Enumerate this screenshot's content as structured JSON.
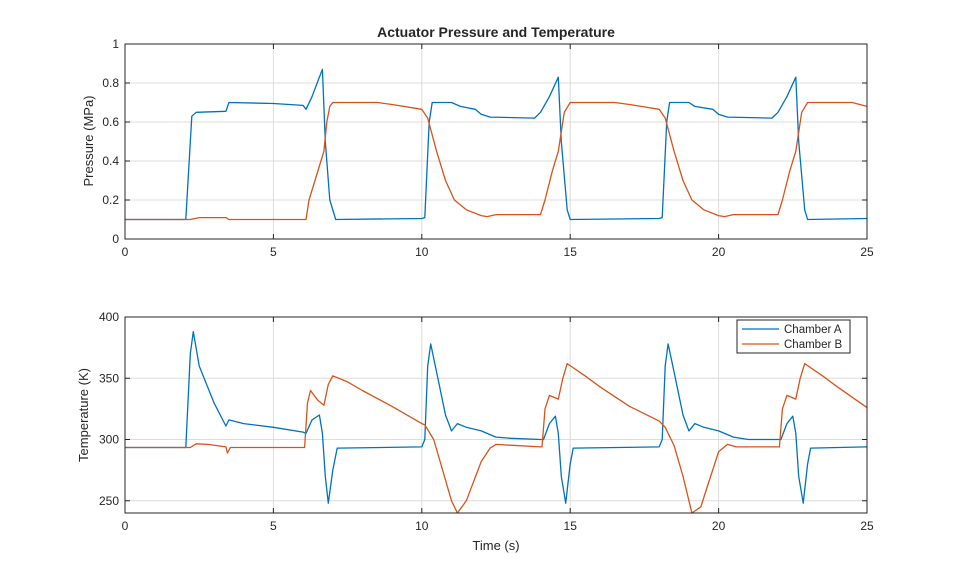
{
  "chart_data": [
    {
      "type": "line",
      "title": "Actuator Pressure and Temperature",
      "xlabel": "",
      "ylabel": "Pressure (MPa)",
      "xlim": [
        0,
        25
      ],
      "ylim": [
        0,
        1
      ],
      "xticks": [
        0,
        5,
        10,
        15,
        20,
        25
      ],
      "yticks": [
        0,
        0.2,
        0.4,
        0.6,
        0.8,
        1
      ],
      "ytick_labels": [
        "0",
        "0.2",
        "0.4",
        "0.6",
        "0.8",
        "1"
      ],
      "grid": true,
      "series": [
        {
          "name": "Chamber A",
          "color": "#0072BD",
          "x": [
            0,
            2.05,
            2.25,
            2.4,
            3.4,
            3.5,
            5,
            6,
            6.1,
            6.3,
            6.5,
            6.65,
            6.75,
            6.9,
            7.1,
            10,
            10.1,
            10.25,
            10.35,
            11,
            11.3,
            11.8,
            12,
            12.3,
            13.8,
            14,
            14.3,
            14.6,
            14.7,
            14.9,
            15,
            18,
            18.1,
            18.25,
            18.35,
            19,
            19.2,
            19.8,
            20,
            20.3,
            21.8,
            22,
            22.3,
            22.6,
            22.7,
            22.9,
            23,
            25
          ],
          "y": [
            0.1,
            0.1,
            0.63,
            0.65,
            0.655,
            0.7,
            0.695,
            0.685,
            0.665,
            0.73,
            0.81,
            0.87,
            0.5,
            0.2,
            0.1,
            0.105,
            0.11,
            0.6,
            0.7,
            0.7,
            0.68,
            0.665,
            0.64,
            0.625,
            0.62,
            0.65,
            0.73,
            0.83,
            0.5,
            0.15,
            0.1,
            0.105,
            0.11,
            0.6,
            0.7,
            0.7,
            0.68,
            0.665,
            0.64,
            0.625,
            0.62,
            0.65,
            0.73,
            0.83,
            0.5,
            0.15,
            0.1,
            0.105
          ]
        },
        {
          "name": "Chamber B",
          "color": "#D95319",
          "x": [
            0,
            2.2,
            2.5,
            3.4,
            3.5,
            6.1,
            6.2,
            6.4,
            6.6,
            6.7,
            6.8,
            6.9,
            7,
            8.5,
            9,
            10,
            10.2,
            10.5,
            10.8,
            11.1,
            11.5,
            12,
            12.2,
            12.5,
            14,
            14.15,
            14.4,
            14.6,
            14.8,
            15,
            16.5,
            17,
            18,
            18.2,
            18.5,
            18.8,
            19.1,
            19.5,
            20,
            20.2,
            20.5,
            22,
            22.15,
            22.4,
            22.6,
            22.8,
            23,
            24.5,
            25
          ],
          "y": [
            0.1,
            0.1,
            0.11,
            0.11,
            0.1,
            0.1,
            0.2,
            0.3,
            0.4,
            0.45,
            0.6,
            0.68,
            0.7,
            0.7,
            0.69,
            0.665,
            0.62,
            0.45,
            0.3,
            0.2,
            0.15,
            0.12,
            0.115,
            0.125,
            0.125,
            0.2,
            0.35,
            0.45,
            0.65,
            0.7,
            0.7,
            0.69,
            0.665,
            0.62,
            0.45,
            0.3,
            0.2,
            0.15,
            0.12,
            0.115,
            0.125,
            0.125,
            0.2,
            0.35,
            0.45,
            0.65,
            0.7,
            0.7,
            0.68
          ]
        }
      ]
    },
    {
      "type": "line",
      "title": "",
      "xlabel": "Time (s)",
      "ylabel": "Temperature (K)",
      "xlim": [
        0,
        25
      ],
      "ylim": [
        240,
        400
      ],
      "xticks": [
        0,
        5,
        10,
        15,
        20,
        25
      ],
      "yticks": [
        250,
        300,
        350,
        400
      ],
      "ytick_labels": [
        "250",
        "300",
        "350",
        "400"
      ],
      "grid": true,
      "legend": "top-right",
      "series": [
        {
          "name": "Chamber A",
          "color": "#0072BD",
          "x": [
            0,
            2.05,
            2.2,
            2.3,
            2.5,
            3,
            3.4,
            3.5,
            4,
            5,
            6,
            6.1,
            6.3,
            6.55,
            6.65,
            6.75,
            6.85,
            7,
            7.15,
            10,
            10.1,
            10.2,
            10.3,
            10.5,
            10.8,
            11,
            11.2,
            11.5,
            12,
            12.5,
            13,
            14,
            14.1,
            14.3,
            14.5,
            14.6,
            14.7,
            14.85,
            15,
            15.1,
            18,
            18.1,
            18.2,
            18.3,
            18.5,
            18.8,
            19,
            19.2,
            19.5,
            20,
            20.5,
            21,
            22,
            22.1,
            22.3,
            22.5,
            22.6,
            22.7,
            22.85,
            23,
            23.1,
            25
          ],
          "y": [
            293.5,
            293.5,
            370,
            388,
            360,
            330,
            311,
            316,
            313,
            310,
            306,
            305,
            316,
            320,
            305,
            270,
            248,
            275,
            293,
            294,
            300,
            360,
            378,
            355,
            320,
            307,
            313,
            310,
            307,
            302,
            301,
            300,
            300,
            313,
            319,
            305,
            270,
            248,
            280,
            293,
            294,
            300,
            360,
            378,
            355,
            320,
            307,
            313,
            310,
            307,
            302,
            300,
            300,
            300,
            313,
            319,
            305,
            270,
            248,
            280,
            293,
            294
          ]
        },
        {
          "name": "Chamber B",
          "color": "#D95319",
          "x": [
            0,
            2.2,
            2.4,
            2.8,
            3.4,
            3.45,
            3.55,
            6.05,
            6.15,
            6.25,
            6.5,
            6.7,
            6.85,
            7,
            7.5,
            8,
            9,
            10,
            10.1,
            10.4,
            10.7,
            11,
            11.2,
            11.5,
            12,
            12.3,
            12.5,
            14,
            14.05,
            14.15,
            14.3,
            14.6,
            14.75,
            14.9,
            15.5,
            16,
            17,
            18,
            18.2,
            18.5,
            18.8,
            19.1,
            19.4,
            19.6,
            20,
            20.3,
            20.6,
            22,
            22.05,
            22.15,
            22.3,
            22.6,
            22.75,
            22.9,
            23.5,
            24,
            25
          ],
          "y": [
            293.5,
            293.5,
            296.5,
            296,
            294,
            289,
            293.5,
            293.5,
            330,
            340,
            332,
            328,
            345,
            352,
            347,
            340,
            327,
            313,
            312,
            300,
            275,
            250,
            240,
            250,
            282,
            293,
            296,
            294,
            294,
            325,
            336,
            333,
            350,
            362,
            352,
            343,
            327,
            315,
            310,
            295,
            270,
            240,
            245,
            260,
            290,
            296,
            294,
            294,
            294,
            325,
            336,
            333,
            350,
            362,
            352,
            343,
            326
          ]
        }
      ]
    }
  ]
}
